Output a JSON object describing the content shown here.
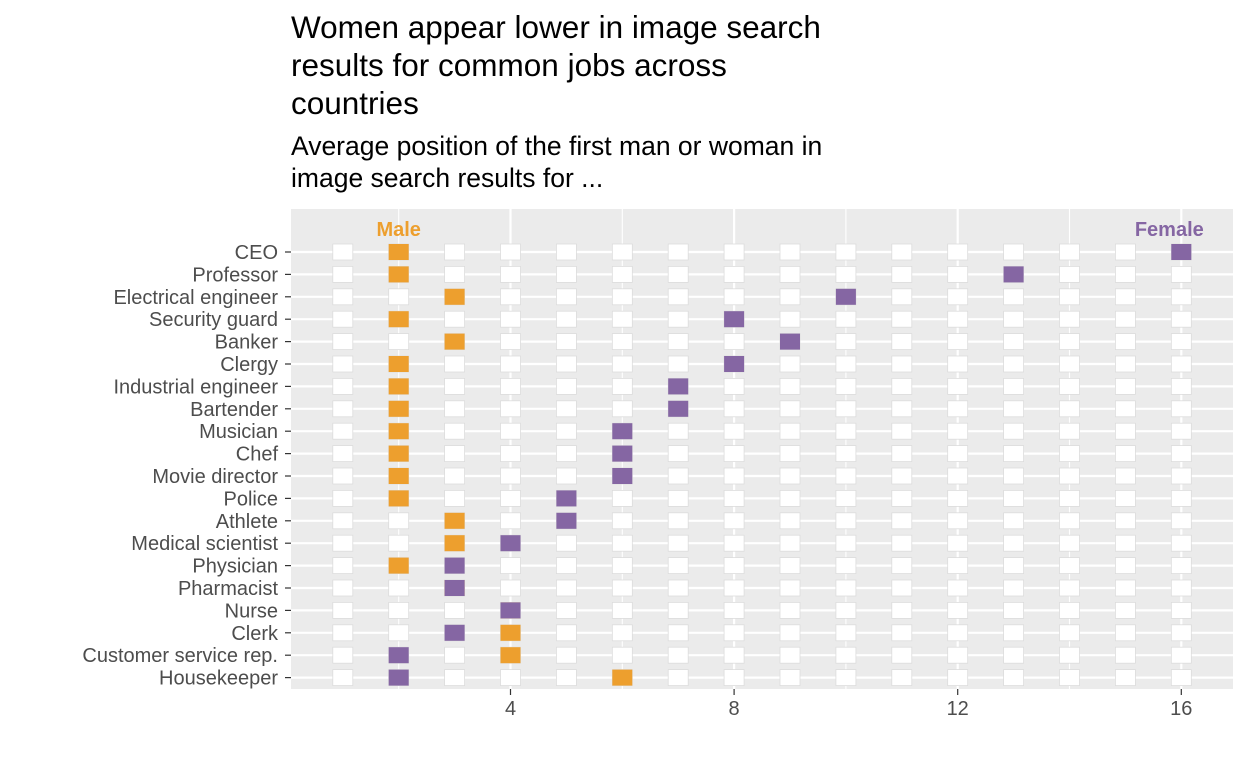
{
  "chart_data": {
    "type": "scatter",
    "title": "Women appear lower in image search results for common jobs across countries",
    "subtitle": "Average position of the first man or woman in image search results for ...",
    "xlim": [
      0,
      16.95
    ],
    "x_ticks": [
      4,
      8,
      12,
      16
    ],
    "grid": true,
    "background_range": [
      1,
      16
    ],
    "categories": [
      "CEO",
      "Professor",
      "Electrical engineer",
      "Security guard",
      "Banker",
      "Clergy",
      "Industrial engineer",
      "Bartender",
      "Musician",
      "Chef",
      "Movie director",
      "Police",
      "Athlete",
      "Medical scientist",
      "Physician",
      "Pharmacist",
      "Nurse",
      "Clerk",
      "Customer service rep.",
      "Housekeeper"
    ],
    "series": [
      {
        "name": "Male",
        "color": "#ed9f2e",
        "values": [
          2,
          2,
          3,
          2,
          3,
          2,
          2,
          2,
          2,
          2,
          2,
          2,
          3,
          3,
          2,
          3,
          4,
          4,
          4,
          6
        ]
      },
      {
        "name": "Female",
        "color": "#8566a3",
        "values": [
          16,
          13,
          10,
          8,
          9,
          8,
          7,
          7,
          6,
          6,
          6,
          5,
          5,
          4,
          3,
          3,
          4,
          3,
          2,
          2
        ]
      }
    ],
    "legend": {
      "male_label": "Male",
      "female_label": "Female",
      "placement": "inline at top of panel"
    }
  }
}
